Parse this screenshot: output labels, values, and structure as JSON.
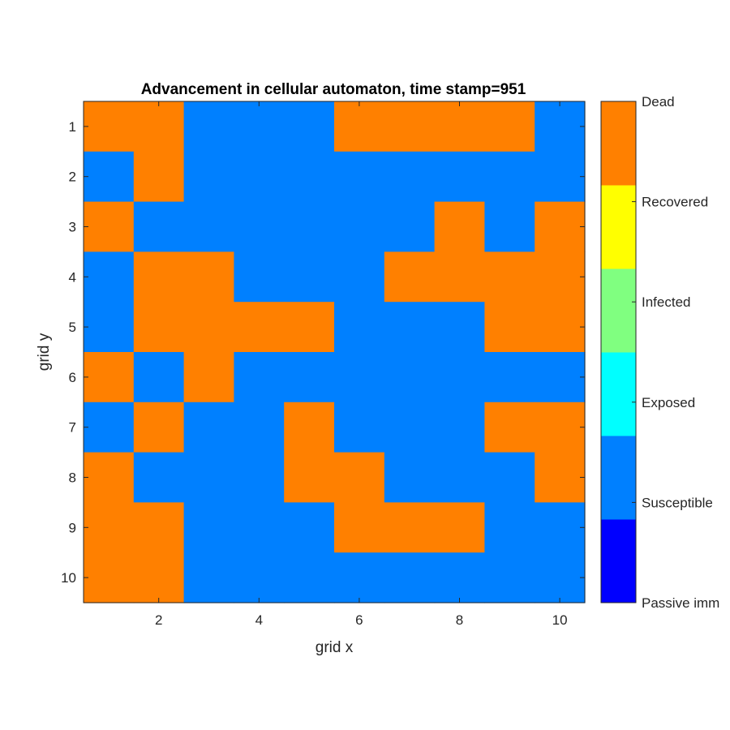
{
  "chart_data": {
    "type": "heatmap",
    "title": "Advancement in cellular automaton, time stamp=951",
    "xlabel": "grid x",
    "ylabel": "grid y",
    "x_ticks": [
      "2",
      "4",
      "6",
      "8",
      "10"
    ],
    "y_ticks": [
      "1",
      "2",
      "3",
      "4",
      "5",
      "6",
      "7",
      "8",
      "9",
      "10"
    ],
    "xlim": [
      0.5,
      10.5
    ],
    "ylim": [
      0.5,
      10.5
    ],
    "y_direction": "reverse",
    "colorbar": {
      "labels": [
        "Passive imm",
        "Susceptible",
        "Exposed",
        "Infected",
        "Recovered",
        "Dead"
      ],
      "colors": [
        "#0000ff",
        "#0080ff",
        "#00ffff",
        "#80ff80",
        "#ffff00",
        "#ff8000"
      ]
    },
    "grid": [
      [
        5,
        5,
        1,
        1,
        1,
        5,
        5,
        5,
        5,
        1
      ],
      [
        1,
        5,
        1,
        1,
        1,
        1,
        1,
        1,
        1,
        1
      ],
      [
        5,
        1,
        1,
        1,
        1,
        1,
        1,
        5,
        1,
        5
      ],
      [
        1,
        5,
        5,
        1,
        1,
        1,
        5,
        5,
        5,
        5
      ],
      [
        1,
        5,
        5,
        5,
        5,
        1,
        1,
        1,
        5,
        5
      ],
      [
        5,
        1,
        5,
        1,
        1,
        1,
        1,
        1,
        1,
        1
      ],
      [
        1,
        5,
        1,
        1,
        5,
        1,
        1,
        1,
        5,
        5
      ],
      [
        5,
        1,
        1,
        1,
        5,
        5,
        1,
        1,
        1,
        5
      ],
      [
        5,
        5,
        1,
        1,
        1,
        5,
        5,
        5,
        1,
        1
      ],
      [
        5,
        5,
        1,
        1,
        1,
        1,
        1,
        1,
        1,
        1
      ]
    ],
    "grid_lines": false
  }
}
